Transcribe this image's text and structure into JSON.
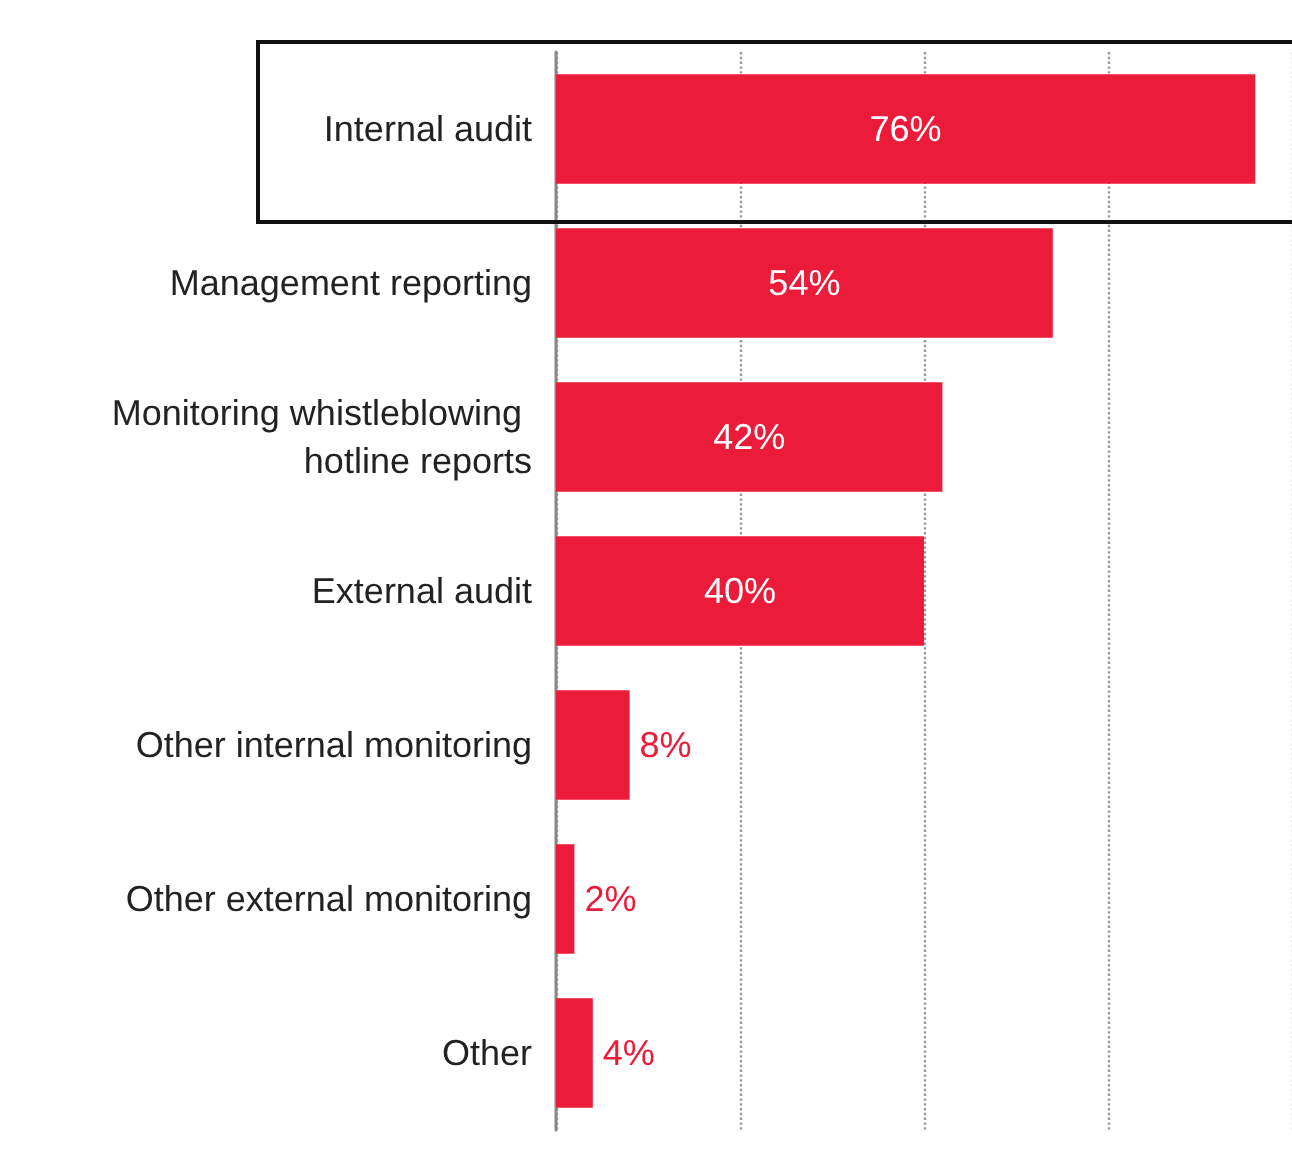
{
  "chart_data": {
    "type": "bar",
    "orientation": "horizontal",
    "categories": [
      "Internal audit",
      "Management reporting",
      "Monitoring whistleblowing hotline reports",
      "External audit",
      "Other internal monitoring",
      "Other external monitoring",
      "Other"
    ],
    "values": [
      76,
      54,
      42,
      40,
      8,
      2,
      4
    ],
    "color": "#ed1b3a",
    "value_labels": [
      "76%",
      "54%",
      "42%",
      "40%",
      "8%",
      "2%",
      "4%"
    ],
    "grid": "x",
    "tick_labels": "y"
  }
}
